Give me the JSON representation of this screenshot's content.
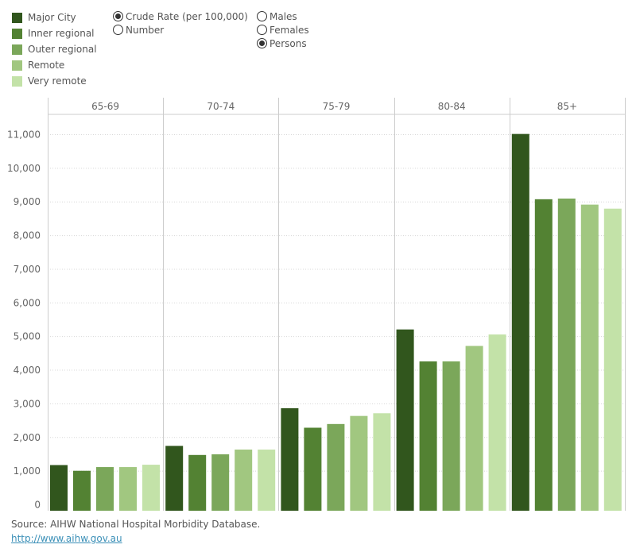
{
  "legend": {
    "items": [
      {
        "label": "Major City",
        "color": "#31561d"
      },
      {
        "label": "Inner regional",
        "color": "#538233"
      },
      {
        "label": "Outer regional",
        "color": "#7ba75a"
      },
      {
        "label": "Remote",
        "color": "#a1c780"
      },
      {
        "label": "Very remote",
        "color": "#c3e2a8"
      }
    ]
  },
  "measure_options": {
    "options": [
      {
        "label": "Crude Rate (per 100,000)",
        "selected": true
      },
      {
        "label": "Number",
        "selected": false
      }
    ]
  },
  "sex_options": {
    "options": [
      {
        "label": "Males",
        "selected": false
      },
      {
        "label": "Females",
        "selected": false
      },
      {
        "label": "Persons",
        "selected": true
      }
    ]
  },
  "chart_data": {
    "type": "bar",
    "categories": [
      "65-69",
      "70-74",
      "75-79",
      "80-84",
      "85+"
    ],
    "series": [
      {
        "name": "Major City",
        "values": [
          1180,
          1750,
          2870,
          5210,
          11020
        ]
      },
      {
        "name": "Inner regional",
        "values": [
          1010,
          1480,
          2290,
          4260,
          9080
        ]
      },
      {
        "name": "Outer regional",
        "values": [
          1120,
          1500,
          2400,
          4260,
          9100
        ]
      },
      {
        "name": "Remote",
        "values": [
          1120,
          1640,
          2640,
          4720,
          8920
        ]
      },
      {
        "name": "Very remote",
        "values": [
          1190,
          1640,
          2720,
          5060,
          8800
        ]
      }
    ],
    "yticks": [
      "0",
      "1,000",
      "2,000",
      "3,000",
      "4,000",
      "5,000",
      "6,000",
      "7,000",
      "8,000",
      "9,000",
      "10,000",
      "11,000"
    ],
    "ylim": [
      0,
      11000
    ],
    "grid": true
  },
  "source": {
    "text": "Source: AIHW National Hospital Morbidity Database.",
    "link": "http://www.aihw.gov.au"
  }
}
